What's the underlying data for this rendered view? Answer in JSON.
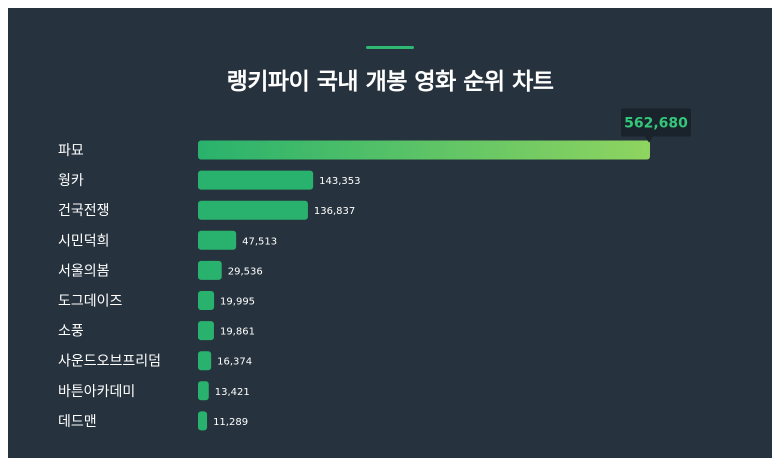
{
  "colors": {
    "background": "#26323d",
    "bar": "#29b26d",
    "bar_gradient_end": "#8fd460",
    "accent": "#2eb872",
    "callout_bg": "#1a232b",
    "callout_text": "#34c77b"
  },
  "chart_data": {
    "type": "bar",
    "orientation": "horizontal",
    "title": "랭키파이 국내 개봉 영화 순위 차트",
    "xlabel": "",
    "ylabel": "",
    "grid": false,
    "categories": [
      "파묘",
      "웡카",
      "건국전쟁",
      "시민덕희",
      "서울의봄",
      "도그데이즈",
      "소풍",
      "사운드오브프리덤",
      "바튼아카데미",
      "데드맨"
    ],
    "values": [
      562680,
      143353,
      136837,
      47513,
      29536,
      19995,
      19861,
      16374,
      13421,
      11289
    ],
    "value_labels": [
      "562,680",
      "143,353",
      "136,837",
      "47,513",
      "29,536",
      "19,995",
      "19,861",
      "16,374",
      "13,421",
      "11,289"
    ],
    "xlim": [
      0,
      562680
    ]
  }
}
